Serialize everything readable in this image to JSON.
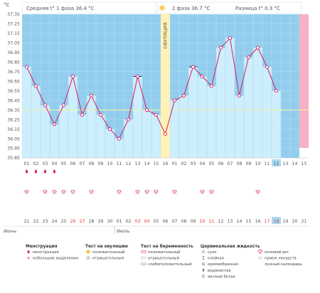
{
  "header": {
    "unit": "°C",
    "phase1": "Средняя t° 1 фаза 36.4 °C",
    "phase2": "2 фаза 36.7 °C",
    "diff": "Разница t° 0.3 °C",
    "ovulation_label": "ОВУЛЯЦИЯ",
    "month_start": "Июнь",
    "month_end": "Июль"
  },
  "colors": {
    "sky": "#92cdee",
    "bar": "#cdeefc",
    "line": "#d81b60",
    "ovulation": "#fff2b8",
    "today": "#aad9f1",
    "pink_day": "#f8b0c6",
    "coverline": "#f2f0a8"
  },
  "chart_data": {
    "type": "line",
    "ylabel": "°C",
    "ylim": [
      35.85,
      37.35
    ],
    "yticks": [
      "37.35",
      "37.25",
      "37.15",
      "37.05",
      "36.95",
      "36.85",
      "36.75",
      "36.65",
      "36.55",
      "36.45",
      "36.35",
      "36.25",
      "36.15",
      "36.05",
      "35.95",
      "35.85"
    ],
    "coverline": 36.35,
    "cycle_days": [
      "01",
      "02",
      "03",
      "04",
      "05",
      "06",
      "07",
      "08",
      "09",
      "10",
      "11",
      "12",
      "13",
      "14",
      "15",
      "16",
      "01",
      "02",
      "03",
      "04",
      "05",
      "06",
      "07",
      "08",
      "09",
      "10",
      "11",
      "12",
      "13",
      "14",
      "15"
    ],
    "dates": [
      "21",
      "22",
      "23",
      "24",
      "25",
      "26",
      "27",
      "28",
      "29",
      "30",
      "01",
      "02",
      "03",
      "04",
      "05",
      "06",
      "07",
      "08",
      "09",
      "10",
      "11",
      "12",
      "13",
      "14",
      "15",
      "16",
      "17",
      "18",
      "19",
      "20",
      "21"
    ],
    "red_dates": [
      5,
      6,
      12,
      13,
      19,
      20,
      26,
      27
    ],
    "temperatures": [
      36.8,
      36.6,
      36.4,
      36.2,
      36.4,
      36.7,
      36.3,
      36.5,
      36.3,
      36.15,
      36.05,
      36.25,
      36.7,
      36.35,
      36.3,
      36.1,
      36.45,
      36.5,
      36.8,
      36.7,
      36.6,
      37.0,
      37.1,
      36.5,
      36.9,
      37.0,
      36.8,
      36.55,
      null,
      null,
      null
    ],
    "bar_days": 28,
    "ovulation_day_index": 15,
    "today_index": 27,
    "pink_day_index": 30,
    "test_marks": [
      12,
      18
    ],
    "menstruation": [
      0,
      1,
      2,
      3
    ],
    "heart_days": [
      0,
      2,
      3,
      4,
      5,
      7,
      10,
      12,
      13,
      14,
      16,
      19,
      20,
      25
    ]
  },
  "legend": {
    "groups": [
      {
        "title": "Менструация",
        "items": [
          {
            "icon": "drop-icon",
            "label": "менструация"
          },
          {
            "icon": "small-drop-icon",
            "label": "небольшие выделения"
          }
        ]
      },
      {
        "title": "Тест на овуляцию",
        "items": [
          {
            "icon": "sun-icon",
            "label": "положительный"
          },
          {
            "icon": "sun-grey-icon",
            "label": "отрицательный"
          }
        ]
      },
      {
        "title": "Тест на беременность",
        "items": [
          {
            "icon": "pregnancy-test-icon",
            "label": "положительный"
          },
          {
            "icon": "pregnancy-test-neg-icon",
            "label": "отрицательный"
          },
          {
            "icon": "pregnancy-test-weak-icon",
            "label": "слабоположительный"
          }
        ]
      },
      {
        "title": "Цервикальная жидкость",
        "items": [
          {
            "icon": "dry-icon",
            "label": "сухо"
          },
          {
            "icon": "sticky-icon",
            "label": "клейкая"
          },
          {
            "icon": "creamy-icon",
            "label": "кремообразная"
          },
          {
            "icon": "watery-icon",
            "label": "водянистая"
          },
          {
            "icon": "eggwhite-icon",
            "label": "яичный белок"
          }
        ]
      },
      {
        "title": "",
        "items": [
          {
            "icon": "heart-icon",
            "label": "половой акт"
          },
          {
            "icon": "pill-icon",
            "label": "прием лекарств"
          },
          {
            "icon": "moon-icon",
            "label": "лунный календарь"
          }
        ]
      }
    ]
  }
}
